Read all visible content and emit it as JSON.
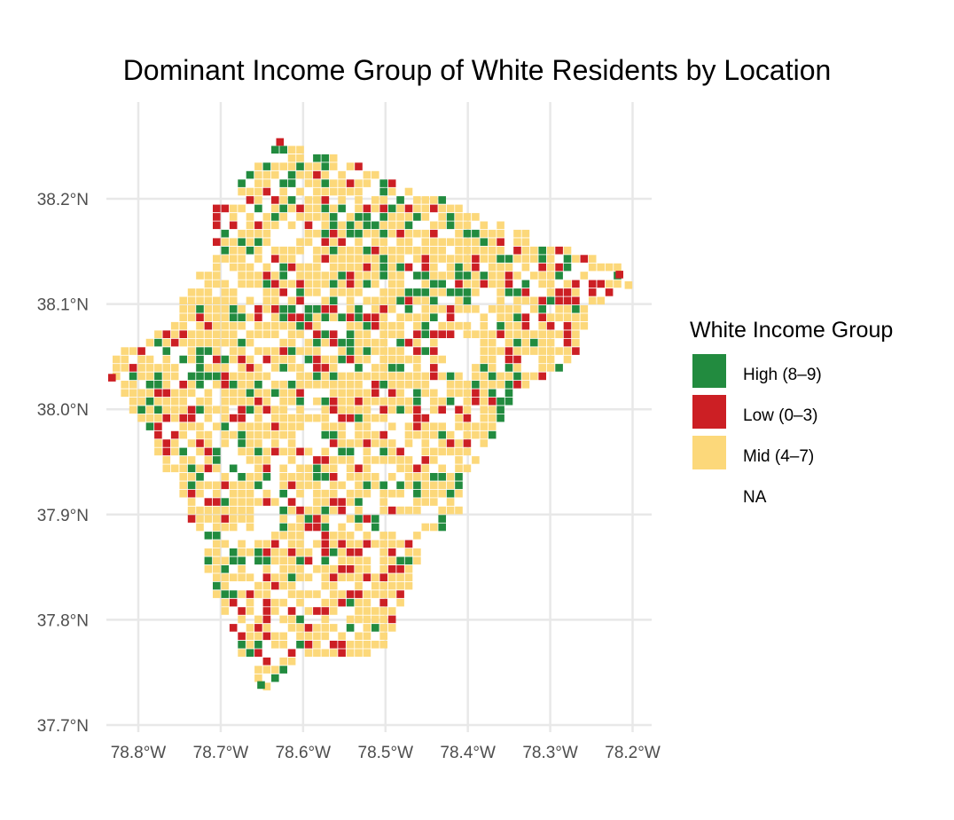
{
  "chart_data": {
    "type": "heatmap",
    "title": "Dominant Income Group of White Residents by Location",
    "x_ticks": [
      "78.8°W",
      "78.7°W",
      "78.6°W",
      "78.5°W",
      "78.4°W",
      "78.3°W",
      "78.2°W"
    ],
    "x_tick_values": [
      -78.8,
      -78.7,
      -78.6,
      -78.5,
      -78.4,
      -78.3,
      -78.2
    ],
    "y_ticks": [
      "37.7°N",
      "37.8°N",
      "37.9°N",
      "38.0°N",
      "38.1°N",
      "38.2°N"
    ],
    "y_tick_values": [
      37.7,
      37.8,
      37.9,
      38.0,
      38.1,
      38.2
    ],
    "xlim": [
      -78.85,
      -78.19
    ],
    "ylim": [
      37.7,
      38.265
    ],
    "grid": true,
    "legend": {
      "title": "White Income Group",
      "placement": "right",
      "entries": [
        {
          "label": "High (8–9)",
          "color": "#228b3f"
        },
        {
          "label": "Low (0–3)",
          "color": "#cc1f24"
        },
        {
          "label": "Mid (4–7)",
          "color": "#fcd87a"
        },
        {
          "label": "NA",
          "color": "none"
        }
      ]
    },
    "seed": 9,
    "cells": [
      {
        "lon": -78.628,
        "lat": 38.254,
        "group": "Low"
      },
      {
        "lon": -78.832,
        "lat": 38.03,
        "group": "Low"
      },
      {
        "lon": -78.651,
        "lat": 37.738,
        "group": "High"
      },
      {
        "lon": -78.216,
        "lat": 38.128,
        "group": "Low"
      },
      {
        "lon": -78.205,
        "lat": 38.118,
        "group": "Mid"
      }
    ]
  }
}
